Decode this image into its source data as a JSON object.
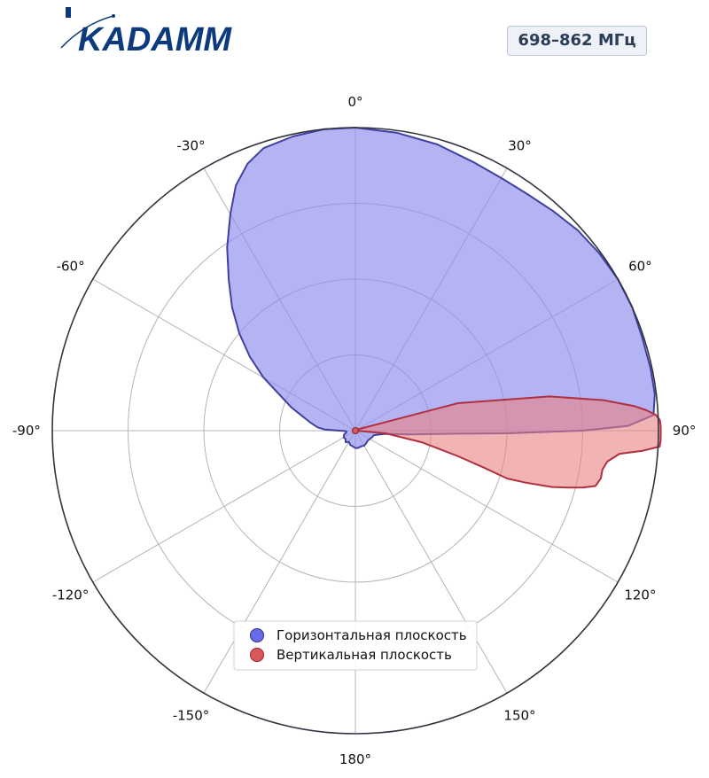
{
  "logo": {
    "text": "KADAMM",
    "color": "#0d3a7c"
  },
  "badge": {
    "label": "698–862 МГц"
  },
  "chart_data": {
    "type": "polar-area",
    "theta_ticks": [
      "0°",
      "30°",
      "60°",
      "90°",
      "120°",
      "150°",
      "180°",
      "-150°",
      "-120°",
      "-90°",
      "-60°",
      "-30°"
    ],
    "r_rings": [
      1,
      2,
      3,
      4
    ],
    "r_max": 4,
    "grid": true,
    "legend_position": "bottom-center",
    "series": [
      {
        "name": "Горизонтальная плоскость",
        "fill": "#8c8cf0",
        "fill_opacity": 0.65,
        "stroke": "#4040a0",
        "marker": "#6b6be6",
        "points": [
          [
            -100,
            0.12
          ],
          [
            -95,
            0.12
          ],
          [
            -92,
            0.15
          ],
          [
            -88,
            0.4
          ],
          [
            -85,
            0.5
          ],
          [
            -80,
            0.6
          ],
          [
            -70,
            0.9
          ],
          [
            -60,
            1.4
          ],
          [
            -55,
            1.7
          ],
          [
            -50,
            2.0
          ],
          [
            -45,
            2.3
          ],
          [
            -40,
            2.6
          ],
          [
            -35,
            2.95
          ],
          [
            -30,
            3.3
          ],
          [
            -26,
            3.6
          ],
          [
            -22,
            3.8
          ],
          [
            -18,
            3.92
          ],
          [
            -12,
            3.97
          ],
          [
            -6,
            4.0
          ],
          [
            0,
            4.0
          ],
          [
            8,
            3.97
          ],
          [
            16,
            3.93
          ],
          [
            24,
            3.87
          ],
          [
            30,
            3.85
          ],
          [
            36,
            3.86
          ],
          [
            42,
            3.9
          ],
          [
            48,
            3.95
          ],
          [
            54,
            3.98
          ],
          [
            60,
            4.0
          ],
          [
            66,
            4.0
          ],
          [
            72,
            3.98
          ],
          [
            78,
            3.98
          ],
          [
            83,
            3.98
          ],
          [
            87,
            3.94
          ],
          [
            89,
            3.6
          ],
          [
            90,
            3.0
          ],
          [
            91,
            2.0
          ],
          [
            92,
            1.2
          ],
          [
            94,
            0.7
          ],
          [
            96,
            0.4
          ],
          [
            100,
            0.3
          ],
          [
            104,
            0.25
          ],
          [
            110,
            0.24
          ],
          [
            120,
            0.22
          ],
          [
            130,
            0.21
          ],
          [
            140,
            0.22
          ],
          [
            150,
            0.23
          ],
          [
            160,
            0.22
          ],
          [
            170,
            0.23
          ],
          [
            180,
            0.23
          ],
          [
            190,
            0.21
          ],
          [
            200,
            0.2
          ],
          [
            210,
            0.17
          ],
          [
            220,
            0.2
          ],
          [
            230,
            0.17
          ],
          [
            240,
            0.18
          ],
          [
            250,
            0.16
          ]
        ]
      },
      {
        "name": "Вертикальная плоскость",
        "fill": "#e88080",
        "fill_opacity": 0.6,
        "stroke": "#b03040",
        "marker": "#d65a5a",
        "points": [
          [
            0,
            0.0
          ],
          [
            60,
            0.03
          ],
          [
            75,
            1.4
          ],
          [
            80,
            2.6
          ],
          [
            83,
            3.3
          ],
          [
            85,
            3.7
          ],
          [
            86,
            3.85
          ],
          [
            87,
            3.97
          ],
          [
            88,
            4.02
          ],
          [
            89,
            4.03
          ],
          [
            90,
            4.03
          ],
          [
            91,
            4.03
          ],
          [
            92,
            4.03
          ],
          [
            93,
            4.02
          ],
          [
            94,
            3.8
          ],
          [
            95,
            3.5
          ],
          [
            97,
            3.35
          ],
          [
            99,
            3.3
          ],
          [
            101,
            3.3
          ],
          [
            103,
            3.25
          ],
          [
            104,
            3.1
          ],
          [
            105,
            2.9
          ],
          [
            106,
            2.7
          ],
          [
            107,
            2.35
          ],
          [
            107.5,
            2.1
          ],
          [
            106,
            1.75
          ],
          [
            104,
            1.4
          ],
          [
            100,
            0.9
          ],
          [
            95,
            0.4
          ],
          [
            90,
            0.0
          ]
        ]
      }
    ]
  }
}
